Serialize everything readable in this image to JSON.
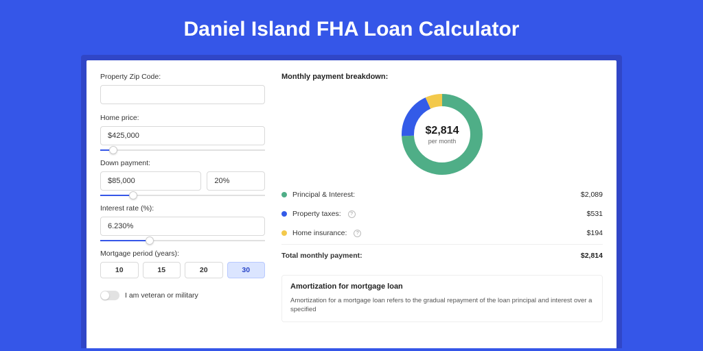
{
  "page": {
    "title": "Daniel Island FHA Loan Calculator",
    "background_color": "#3556e8",
    "frame_shadow_color": "#3046c7",
    "panel_bg": "#ffffff"
  },
  "form": {
    "zip": {
      "label": "Property Zip Code:",
      "value": ""
    },
    "home_price": {
      "label": "Home price:",
      "value": "$425,000",
      "slider_pct": 8
    },
    "down_payment": {
      "label": "Down payment:",
      "amount": "$85,000",
      "percent": "20%",
      "slider_pct": 20
    },
    "interest_rate": {
      "label": "Interest rate (%):",
      "value": "6.230%",
      "slider_pct": 30
    },
    "mortgage_period": {
      "label": "Mortgage period (years):",
      "options": [
        "10",
        "15",
        "20",
        "30"
      ],
      "active_index": 3
    },
    "veteran_toggle": {
      "label": "I am veteran or military",
      "on": false
    }
  },
  "breakdown": {
    "heading": "Monthly payment breakdown:",
    "center_amount": "$2,814",
    "center_sub": "per month",
    "donut": {
      "radius": 50,
      "stroke_width": 18,
      "slices": [
        {
          "key": "principal_interest",
          "fraction": 0.742,
          "color": "#4fae87"
        },
        {
          "key": "property_taxes",
          "fraction": 0.189,
          "color": "#335be8"
        },
        {
          "key": "home_insurance",
          "fraction": 0.069,
          "color": "#f3c94b"
        }
      ]
    },
    "items": [
      {
        "label": "Principal & Interest:",
        "value": "$2,089",
        "color": "#4fae87",
        "help": false
      },
      {
        "label": "Property taxes:",
        "value": "$531",
        "color": "#335be8",
        "help": true
      },
      {
        "label": "Home insurance:",
        "value": "$194",
        "color": "#f3c94b",
        "help": true
      }
    ],
    "total": {
      "label": "Total monthly payment:",
      "value": "$2,814"
    }
  },
  "amortization": {
    "title": "Amortization for mortgage loan",
    "text": "Amortization for a mortgage loan refers to the gradual repayment of the loan principal and interest over a specified"
  }
}
